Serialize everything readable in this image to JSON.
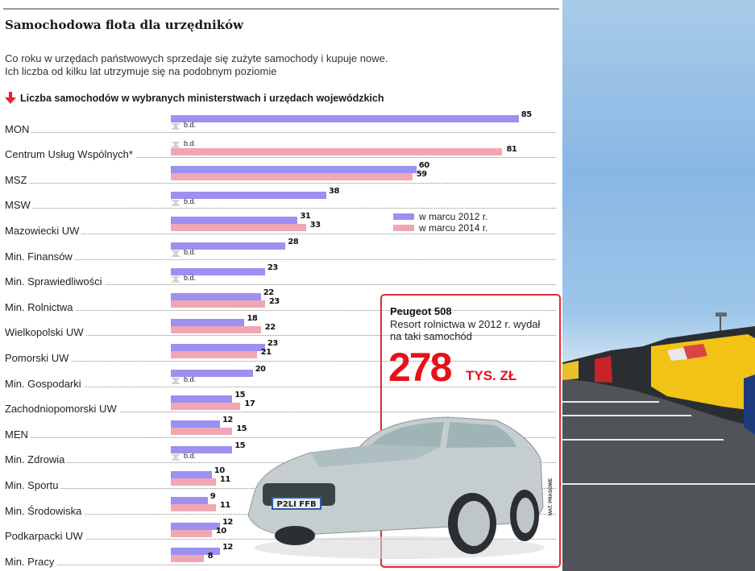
{
  "title": "Samochodowa flota dla urzędników",
  "subtitle_lines": [
    "Co roku w urzędach państwowych sprzedaje się zużyte samochody i kupuje nowe.",
    "Ich liczba od kilku lat utrzymuje się na podobnym poziomie"
  ],
  "chart_heading": "Liczba samochodów w wybranych ministerstwach i urzędach wojewódzkich",
  "no_data_label": "b.d.",
  "legend": [
    {
      "label": "w marcu 2012 r.",
      "color": "#9c90f0"
    },
    {
      "label": "w marcu 2014 r.",
      "color": "#f0a7b2"
    }
  ],
  "callout": {
    "heading": "Peugeot 508",
    "text": "Resort rolnictwa w 2012 r. wydał na taki samochód",
    "amount": "278",
    "unit": "TYS. ZŁ",
    "accent": "#e8101a"
  },
  "car_plate": "P2LI FFB",
  "photo_credit": "MAT. PRASOWE",
  "chart_data": {
    "type": "bar",
    "orientation": "horizontal",
    "title": "Liczba samochodów w wybranych ministerstwach i urzędach wojewódzkich",
    "xlabel": "",
    "ylabel": "",
    "categories": [
      "MON",
      "Centrum Usług Wspólnych*",
      "MSZ",
      "MSW",
      "Mazowiecki UW",
      "Min. Finansów",
      "Min. Sprawiedliwości",
      "Min. Rolnictwa",
      "Wielkopolski UW",
      "Pomorski UW",
      "Min. Gospodarki",
      "Zachodniopomorski UW",
      "MEN",
      "Min. Zdrowia",
      "Min. Sportu",
      "Min. Środowiska",
      "Podkarpacki UW",
      "Min. Pracy"
    ],
    "series": [
      {
        "name": "w marcu 2012 r.",
        "color": "#9c90f0",
        "values": [
          85,
          null,
          60,
          38,
          31,
          28,
          23,
          22,
          18,
          23,
          20,
          15,
          12,
          15,
          10,
          9,
          12,
          12
        ]
      },
      {
        "name": "w marcu 2014 r.",
        "color": "#f0a7b2",
        "values": [
          null,
          81,
          59,
          null,
          33,
          null,
          null,
          23,
          22,
          21,
          null,
          17,
          15,
          null,
          11,
          11,
          10,
          8
        ]
      }
    ],
    "null_label": "b.d.",
    "legend_position": "right-inside",
    "grid": false
  }
}
